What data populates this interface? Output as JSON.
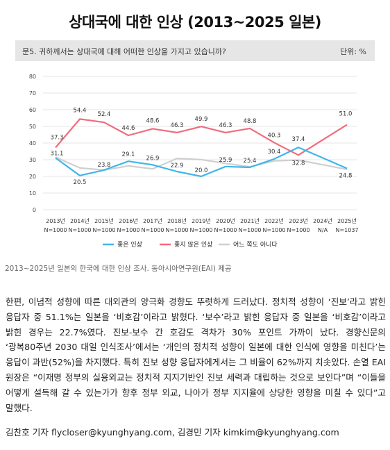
{
  "title": "상대국에 대한 인상 (2013~2025 일본)",
  "question": "문5. 귀하께서는 상대국에 대해 어떠한 인상을 가지고 있습니까?",
  "unit": "단위: %",
  "source": "2013~2025년 일본의 한국에 대한 인상 조사. 동아시아연구원(EAI) 제공",
  "article": "한편, 이념적 성향에 따른 대외관의 양극화 경향도 뚜렷하게 드러났다. 정치적 성향이 ‘진보’라고 밝힌 응답자 중 51.1%는 일본을 ‘비호감’이라고 밝혔다. ‘보수’라고 밝힌 응답자 중 일본을 ‘비호감’이라고 밝힌 경우는 22.7%였다. 진보-보수 간 호감도 격차가 30% 포인트 가까이 났다. 경향신문의 ‘광복80주년 2030 대일 인식조사’에서는 ‘개인의 정치적 성향이 일본에 대한 인식에 영향을 미친다’는 응답이 과반(52%)을 차지했다. 특히 진보 성향 응답자에게서는 그 비율이 62%까지 치솟았다. 손열 EAI 원장은 “이재명 정부의 실용외교는 정치적 지지기반인 진보 세력과 대립하는 것으로 보인다”며 “이들을 어떻게 설득해 갈 수 있는가가 향후 정부 외교, 나아가 정부 지지율에 상당한 영향을 미칠 수 있다”고 말했다.",
  "byline": "김찬호 기자 flycloser@kyunghyang.com, 김경민 기자 kimkim@kyunghyang.com",
  "chart_data": {
    "type": "line",
    "categories": [
      "2013년",
      "2014년",
      "2015년",
      "2016년",
      "2017년",
      "2018년",
      "2019년",
      "2020년",
      "2021년",
      "2022년",
      "2023년",
      "2024년",
      "2025년"
    ],
    "category_notes": [
      "N=1000",
      "N=1000",
      "N=1000",
      "N=1000",
      "N=1000",
      "N=1000",
      "N=1000",
      "N=1000",
      "N=1000",
      "N=1000",
      "N=1000",
      "N/A",
      "N=1037"
    ],
    "ylim": [
      0,
      80
    ],
    "yticks": [
      0,
      10,
      20,
      30,
      40,
      50,
      60,
      70,
      80
    ],
    "grid": true,
    "legend_position": "bottom",
    "series": [
      {
        "name": "좋은 인상",
        "color": "#3fb6ea",
        "values": [
          31.1,
          20.5,
          23.8,
          29.1,
          26.9,
          22.9,
          20.0,
          25.9,
          25.4,
          30.4,
          37.4,
          null,
          24.8
        ],
        "labeled": true
      },
      {
        "name": "좋지 않은 인상",
        "color": "#f26b7c",
        "values": [
          37.3,
          54.4,
          52.4,
          44.6,
          48.6,
          46.3,
          49.9,
          46.3,
          48.8,
          40.3,
          32.8,
          null,
          51.0
        ],
        "labeled": true
      },
      {
        "name": "어느 쪽도 아니다",
        "color": "#cfcfcf",
        "values": [
          31.6,
          25.1,
          23.8,
          26.3,
          24.5,
          30.8,
          30.1,
          27.8,
          25.8,
          29.3,
          29.8,
          null,
          24.2
        ],
        "labeled": false
      }
    ]
  }
}
